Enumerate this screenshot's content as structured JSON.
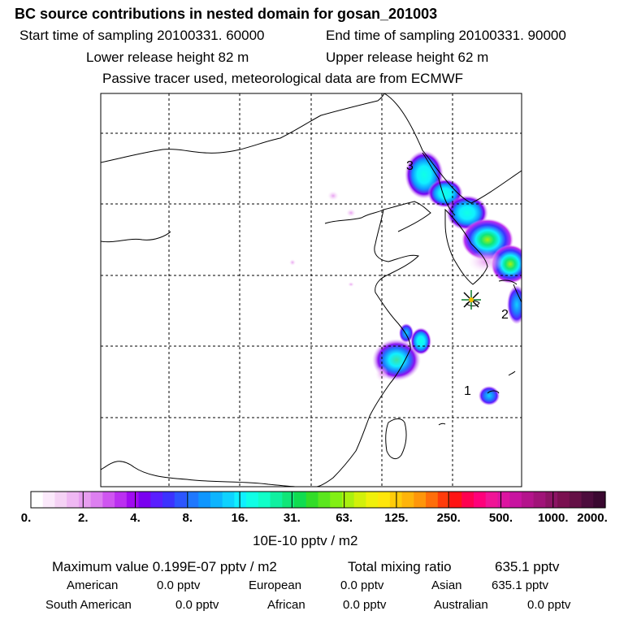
{
  "header": {
    "title": "BC  source contributions in nested domain for gosan_201003",
    "start_label": "Start time of sampling 20100331. 60000",
    "end_label": "End time of sampling 20100331. 90000",
    "lower_label": "Lower release height   82 m",
    "upper_label": "Upper release height   62 m",
    "note": "Passive tracer used, meteorological data are from ECMWF"
  },
  "map": {
    "markers": [
      {
        "label": "3"
      },
      {
        "label": "2"
      },
      {
        "label": "1"
      }
    ],
    "receptor_name": "gosan",
    "receptor_symbol": "star"
  },
  "colorbar": {
    "ticks": [
      "0.",
      "2.",
      "4.",
      "8.",
      "16.",
      "31.",
      "63.",
      "125.",
      "250.",
      "500.",
      "1000.",
      "2000."
    ],
    "colors": [
      "#ffffff",
      "#fbe9fb",
      "#f5d2f5",
      "#efb8f3",
      "#e79ef0",
      "#dd7ff0",
      "#cf55f0",
      "#bb2ff0",
      "#a00af0",
      "#7a00f0",
      "#5a1eff",
      "#3c32ff",
      "#2c55ff",
      "#1f78ff",
      "#0f96ff",
      "#0db4ff",
      "#0fd2ff",
      "#10f0ff",
      "#10ffe6",
      "#10ffc8",
      "#10f0a0",
      "#10e678",
      "#10dc50",
      "#32dc28",
      "#5ae61e",
      "#82f014",
      "#aaf00f",
      "#d2f00a",
      "#f0f00a",
      "#ffe60a",
      "#ffcc0a",
      "#ffb40a",
      "#ff960a",
      "#ff6e0a",
      "#ff3c0a",
      "#ff1414",
      "#ff0050",
      "#ff007a",
      "#f01496",
      "#dc14a0",
      "#c814a0",
      "#b4148c",
      "#a01478",
      "#8c1464",
      "#7a1050",
      "#641046",
      "#4c0c3c",
      "#3a0830"
    ],
    "units": "10E-10 pptv / m2"
  },
  "stats": {
    "max_label": "Maximum value  0.199E-07 pptv / m2",
    "total_label": "Total mixing ratio",
    "total_value": "635.1 pptv",
    "regions": [
      {
        "name": "American",
        "value": "0.0 pptv"
      },
      {
        "name": "European",
        "value": "0.0 pptv"
      },
      {
        "name": "Asian",
        "value": "635.1 pptv"
      },
      {
        "name": "South American",
        "value": "0.0 pptv"
      },
      {
        "name": "African",
        "value": "0.0 pptv"
      },
      {
        "name": "Australian",
        "value": "0.0 pptv"
      }
    ]
  }
}
